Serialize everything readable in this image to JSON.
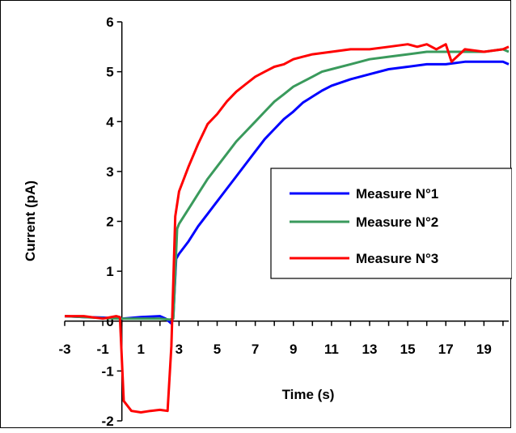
{
  "chart_data": {
    "type": "line",
    "xlabel": "Time (s)",
    "ylabel": "Current (pA)",
    "xlim": [
      -3,
      20.3
    ],
    "ylim": [
      -2,
      6
    ],
    "xticks": [
      -3,
      -1,
      1,
      3,
      5,
      7,
      9,
      11,
      13,
      15,
      17,
      19
    ],
    "yticks": [
      -2,
      -1,
      0,
      1,
      2,
      3,
      4,
      5,
      6
    ],
    "legend_position": "right",
    "grid": false,
    "series": [
      {
        "name": "Measure N°1",
        "color": "#0000ff",
        "x": [
          -3,
          -2,
          -1,
          0,
          1,
          2,
          2.3,
          2.6,
          2.7,
          2.85,
          3,
          3.5,
          4,
          4.5,
          5,
          5.5,
          6,
          6.5,
          7,
          7.5,
          8,
          8.5,
          9,
          9.5,
          10,
          10.5,
          11,
          12,
          13,
          14,
          15,
          16,
          17,
          18,
          19,
          20,
          20.3
        ],
        "values": [
          0.1,
          0.08,
          0.07,
          0.05,
          0.08,
          0.1,
          0.05,
          -0.05,
          0.1,
          1.25,
          1.35,
          1.6,
          1.9,
          2.15,
          2.4,
          2.65,
          2.9,
          3.15,
          3.4,
          3.65,
          3.85,
          4.05,
          4.2,
          4.38,
          4.5,
          4.62,
          4.72,
          4.85,
          4.95,
          5.05,
          5.1,
          5.15,
          5.15,
          5.2,
          5.2,
          5.2,
          5.15
        ]
      },
      {
        "name": "Measure N°2",
        "color": "#3a9a5c",
        "x": [
          -3,
          -2,
          -1,
          0,
          1,
          2,
          2.5,
          2.7,
          2.9,
          3,
          3.5,
          4,
          4.5,
          5,
          5.5,
          6,
          6.5,
          7,
          7.5,
          8,
          8.5,
          9,
          9.5,
          10,
          10.5,
          11,
          12,
          13,
          14,
          15,
          16,
          17,
          18,
          19,
          20,
          20.3
        ],
        "values": [
          0.1,
          0.08,
          0.06,
          0.05,
          0.05,
          0.05,
          0.03,
          0.05,
          1.85,
          1.95,
          2.25,
          2.55,
          2.85,
          3.1,
          3.35,
          3.6,
          3.8,
          4.0,
          4.2,
          4.4,
          4.55,
          4.7,
          4.8,
          4.9,
          5.0,
          5.05,
          5.15,
          5.25,
          5.3,
          5.35,
          5.4,
          5.4,
          5.4,
          5.4,
          5.45,
          5.4
        ]
      },
      {
        "name": "Measure N°3",
        "color": "#ff0000",
        "x": [
          -3,
          -2,
          -1,
          -0.3,
          -0.1,
          0.1,
          0.5,
          1,
          1.5,
          2,
          2.4,
          2.6,
          2.8,
          3,
          3.5,
          4,
          4.5,
          5,
          5.5,
          6,
          6.5,
          7,
          7.5,
          8,
          8.5,
          9,
          9.5,
          10,
          11,
          12,
          13,
          14,
          15,
          15.5,
          16,
          16.5,
          17,
          17.3,
          18,
          19,
          20,
          20.3
        ],
        "values": [
          0.1,
          0.1,
          0.05,
          0.1,
          0.08,
          -1.6,
          -1.8,
          -1.83,
          -1.8,
          -1.78,
          -1.8,
          -0.5,
          2.1,
          2.6,
          3.1,
          3.55,
          3.95,
          4.15,
          4.4,
          4.6,
          4.75,
          4.9,
          5.0,
          5.1,
          5.15,
          5.25,
          5.3,
          5.35,
          5.4,
          5.45,
          5.45,
          5.5,
          5.55,
          5.5,
          5.55,
          5.45,
          5.55,
          5.2,
          5.45,
          5.4,
          5.45,
          5.5
        ]
      }
    ]
  }
}
